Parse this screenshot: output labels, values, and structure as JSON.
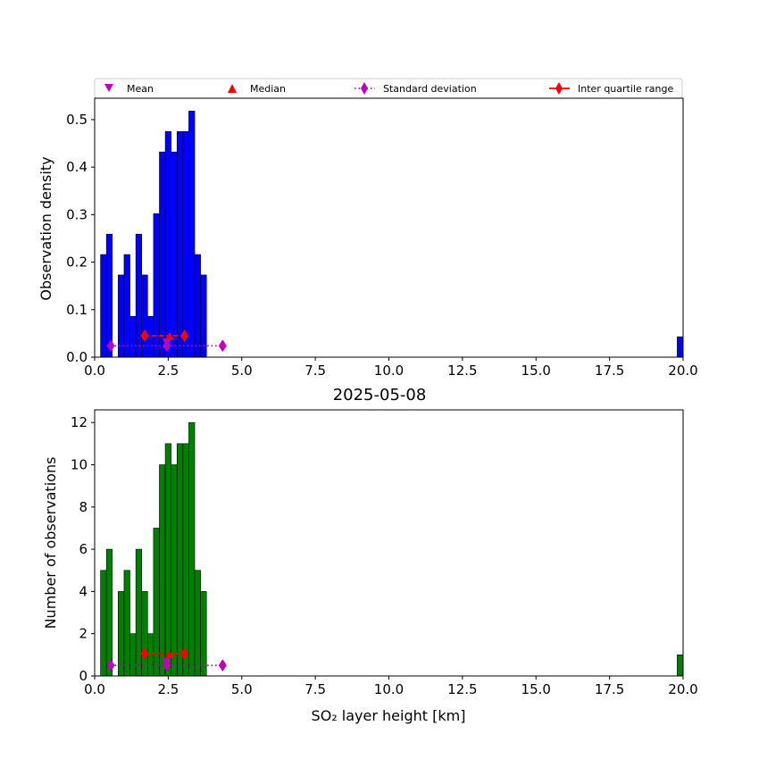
{
  "legend": {
    "mean": "Mean",
    "median": "Median",
    "std": "Standard deviation",
    "iqr": "Inter quartile range"
  },
  "colors": {
    "top_bars": "#0000ff",
    "bottom_bars": "#008000",
    "stat_mean_std": "#bf00bf",
    "stat_iqr": "#ff0000"
  },
  "chart_data": [
    {
      "type": "bar",
      "title": "",
      "xlabel": "",
      "ylabel": "Observation density",
      "xlim": [
        0,
        20
      ],
      "ylim": [
        0,
        0.545
      ],
      "xticks": [
        "0.0",
        "2.5",
        "5.0",
        "7.5",
        "10.0",
        "12.5",
        "15.0",
        "17.5",
        "20.0"
      ],
      "yticks": [
        "0.0",
        "0.1",
        "0.2",
        "0.3",
        "0.4",
        "0.5"
      ],
      "bin_width": 0.2,
      "bins": [
        {
          "x": 0.2,
          "value": 0.216
        },
        {
          "x": 0.4,
          "value": 0.259
        },
        {
          "x": 0.8,
          "value": 0.173
        },
        {
          "x": 1.0,
          "value": 0.216
        },
        {
          "x": 1.2,
          "value": 0.086
        },
        {
          "x": 1.4,
          "value": 0.259
        },
        {
          "x": 1.6,
          "value": 0.173
        },
        {
          "x": 1.8,
          "value": 0.086
        },
        {
          "x": 2.0,
          "value": 0.302
        },
        {
          "x": 2.2,
          "value": 0.432
        },
        {
          "x": 2.4,
          "value": 0.475
        },
        {
          "x": 2.6,
          "value": 0.432
        },
        {
          "x": 2.8,
          "value": 0.475
        },
        {
          "x": 3.0,
          "value": 0.475
        },
        {
          "x": 3.2,
          "value": 0.518
        },
        {
          "x": 3.4,
          "value": 0.216
        },
        {
          "x": 3.6,
          "value": 0.173
        },
        {
          "x": 19.8,
          "value": 0.043
        }
      ],
      "stats": {
        "mean": 2.45,
        "std_low": 0.55,
        "std_high": 4.35,
        "std_y": 0.024,
        "median": 2.55,
        "q1": 1.7,
        "q3": 3.05,
        "iqr_y": 0.045
      }
    },
    {
      "type": "bar",
      "title": "2025-05-08",
      "xlabel": "SO₂ layer height [km]",
      "ylabel": "Number of observations",
      "xlim": [
        0,
        20
      ],
      "ylim": [
        0,
        12.6
      ],
      "xticks": [
        "0.0",
        "2.5",
        "5.0",
        "7.5",
        "10.0",
        "12.5",
        "15.0",
        "17.5",
        "20.0"
      ],
      "yticks": [
        "0",
        "2",
        "4",
        "6",
        "8",
        "10",
        "12"
      ],
      "bin_width": 0.2,
      "bins": [
        {
          "x": 0.2,
          "value": 5
        },
        {
          "x": 0.4,
          "value": 6
        },
        {
          "x": 0.8,
          "value": 4
        },
        {
          "x": 1.0,
          "value": 5
        },
        {
          "x": 1.2,
          "value": 2
        },
        {
          "x": 1.4,
          "value": 6
        },
        {
          "x": 1.6,
          "value": 4
        },
        {
          "x": 1.8,
          "value": 2
        },
        {
          "x": 2.0,
          "value": 7
        },
        {
          "x": 2.2,
          "value": 10
        },
        {
          "x": 2.4,
          "value": 11
        },
        {
          "x": 2.6,
          "value": 10
        },
        {
          "x": 2.8,
          "value": 11
        },
        {
          "x": 3.0,
          "value": 11
        },
        {
          "x": 3.2,
          "value": 12
        },
        {
          "x": 3.4,
          "value": 5
        },
        {
          "x": 3.6,
          "value": 4
        },
        {
          "x": 19.8,
          "value": 1
        }
      ],
      "stats": {
        "mean": 2.45,
        "std_low": 0.55,
        "std_high": 4.35,
        "std_y": 0.5,
        "median": 2.55,
        "q1": 1.7,
        "q3": 3.05,
        "iqr_y": 1.05
      }
    }
  ]
}
